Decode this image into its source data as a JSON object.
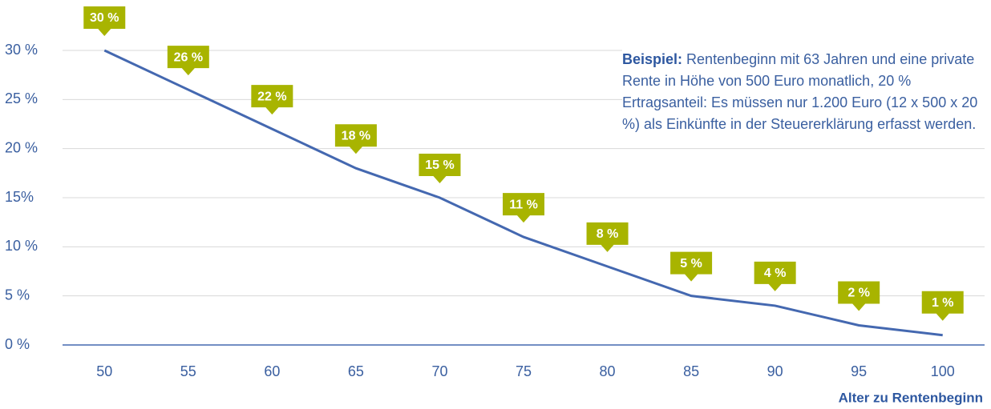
{
  "chart_data": {
    "type": "line",
    "x": [
      50,
      55,
      60,
      65,
      70,
      75,
      80,
      85,
      90,
      95,
      100
    ],
    "series": [
      {
        "name": "Ertragsanteil",
        "color": "#4468b0",
        "values": [
          30,
          26,
          22,
          18,
          15,
          11,
          8,
          5,
          4,
          2,
          1
        ],
        "value_labels": [
          "30 %",
          "26 %",
          "22 %",
          "18 %",
          "15 %",
          "11 %",
          "8 %",
          "5 %",
          "4 %",
          "2 %",
          "1 %"
        ]
      }
    ],
    "label_color": "#a8b400",
    "xlim": [
      47.5,
      102.5
    ],
    "xticks": [
      50,
      55,
      60,
      65,
      70,
      75,
      80,
      85,
      90,
      95,
      100
    ],
    "ylim": [
      0,
      30
    ],
    "yticks": [
      {
        "value": 0,
        "label": "0 %"
      },
      {
        "value": 5,
        "label": "5 %"
      },
      {
        "value": 10,
        "label": "10 %"
      },
      {
        "value": 15,
        "label": "15%"
      },
      {
        "value": 20,
        "label": "20 %"
      },
      {
        "value": 25,
        "label": "25 %"
      },
      {
        "value": 30,
        "label": "30 %"
      }
    ],
    "grid": true,
    "x_label": "Alter zu Rentenbeginn",
    "annotation": {
      "label": "Beispiel:",
      "text": "Rentenbeginn mit 63 Jahren und eine private Rente in Höhe von 500 Euro monatlich, 20 % Ertragsanteil: Es müssen nur 1.200 Euro (12 x 500 x 20 %) als Einkünfte in der Steuererklärung erfasst werden."
    }
  }
}
